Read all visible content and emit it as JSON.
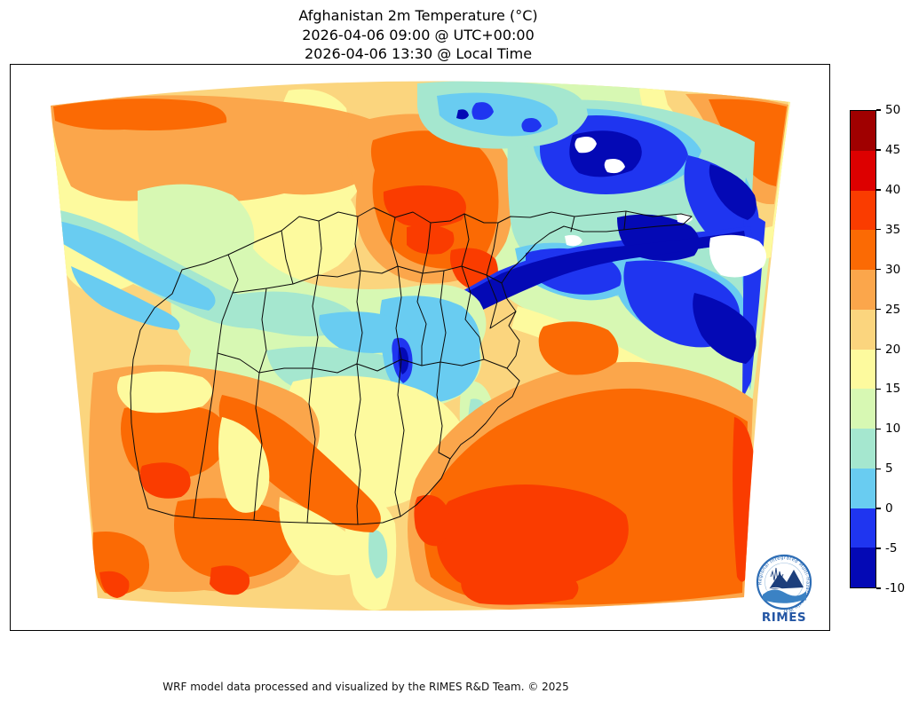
{
  "title": {
    "line1": "Afghanistan 2m Temperature (°C)",
    "line2": "2026-04-06 09:00 @ UTC+00:00",
    "line3": "2026-04-06 13:30 @ Local Time"
  },
  "footer": {
    "credit": "WRF model data processed and visualized by the RIMES R&D Team. © 2025"
  },
  "colorbar": {
    "unit": "°C",
    "tick_labels_top_to_bottom": [
      "50",
      "45",
      "40",
      "35",
      "30",
      "25",
      "20",
      "15",
      "10",
      "5",
      "0",
      "-5",
      "-10"
    ],
    "segment_colors_top_to_bottom": [
      "#a00000",
      "#dd0000",
      "#fa3c00",
      "#fb6a04",
      "#fba64b",
      "#fbd57e",
      "#fdfa9e",
      "#d7f8b3",
      "#a5e7cf",
      "#69ccf1",
      "#1f35f0",
      "#0409b5"
    ],
    "below_scale_color": "#ffffff"
  },
  "logo": {
    "org": "RIMES",
    "ring_text": "Regional Integrated Multi-Hazard Early Warning System",
    "brand_color": "#2456a4"
  }
}
